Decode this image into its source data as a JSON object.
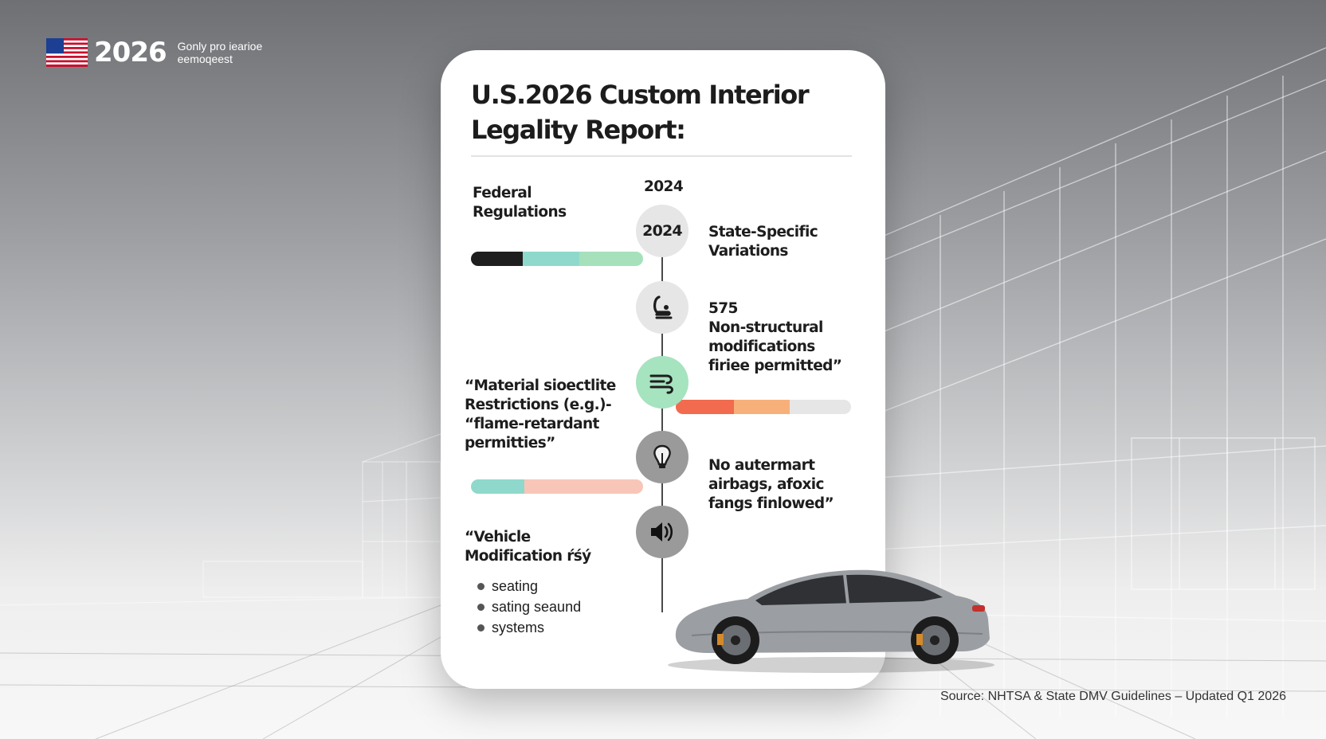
{
  "header": {
    "year": "2026",
    "subtitle_line1": "Gonly pro iearioe",
    "subtitle_line2": "eemoqeest"
  },
  "card": {
    "title": "U.S.2026 Custom Interior Legality Report:",
    "timeline_year_label": "2024",
    "node_year": "2024",
    "entries": {
      "federal": "Federal Regulations",
      "state": "State-Specific Variations",
      "nonstructural_marker": "575",
      "nonstructural": "Non-structural modifications firiee permitted”",
      "material": "“Material sioectlite Restrictions (e.g.)- “flame-retardant permitties”",
      "airbags": "No autermart airbags, afoxic fangs finlowed”",
      "vehicle": "“Vehicle Modification ŕśý"
    },
    "bullets": [
      "seating",
      "sating seaund",
      "systems"
    ]
  },
  "icons": {
    "flag": "us-flag-icon",
    "node_2": "seat-icon",
    "node_3": "fabric-waves-icon",
    "node_4": "light-bulb-icon",
    "node_5": "speaker-icon"
  },
  "colors": {
    "bar_dark": "#1e1e1e",
    "bar_teal": "#8fd9cc",
    "bar_mint": "#a6e1bc",
    "bar_coral": "#f26b4e",
    "bar_orange": "#f8b07a",
    "bar_light_grey": "#e6e6e6",
    "bar_pink": "#f8c6b8",
    "node_green": "#a6e3bf"
  },
  "footer": {
    "source": "Source: NHTSA & State DMV Guidelines – Updated Q1 2026"
  }
}
